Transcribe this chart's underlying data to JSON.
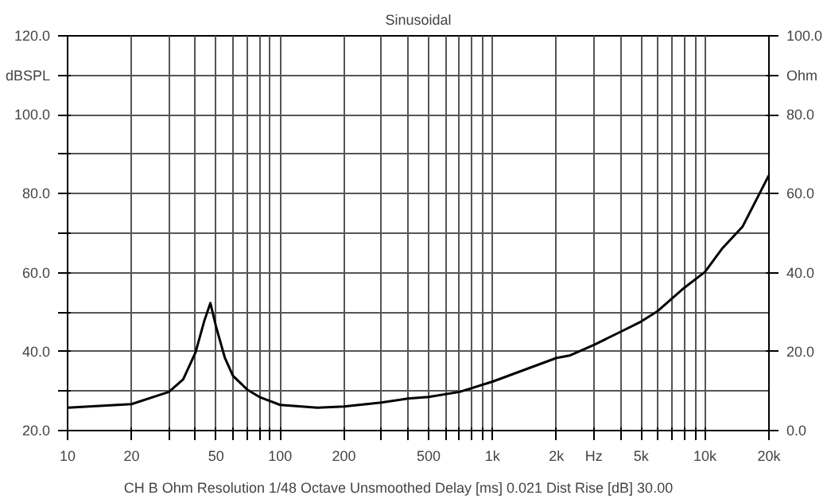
{
  "chart_data": {
    "type": "line",
    "title": "Sinusoidal",
    "x": [
      10,
      20,
      30,
      35,
      40,
      44,
      47,
      50,
      55,
      60,
      70,
      80,
      100,
      150,
      200,
      300,
      400,
      500,
      700,
      1000,
      2000,
      2300,
      3000,
      4000,
      5000,
      6000,
      8000,
      10000,
      12000,
      15000,
      20000
    ],
    "series": [
      {
        "color": "#000000",
        "axis": "y2",
        "values": [
          5.8,
          6.7,
          9.8,
          13,
          19.8,
          27.8,
          32.3,
          26.3,
          18.4,
          13.9,
          10.4,
          8.5,
          6.5,
          5.8,
          6.1,
          7.1,
          8.1,
          8.5,
          9.8,
          12.4,
          18.4,
          19,
          21.7,
          25,
          27.6,
          30.3,
          36.2,
          40.2,
          46,
          51.6,
          64.7
        ]
      }
    ],
    "xlim": [
      10,
      20000
    ],
    "log": "x",
    "xticks": [
      10,
      20,
      {
        "value": 30,
        "label": null
      },
      {
        "value": 40,
        "label": null
      },
      50,
      {
        "value": 60,
        "label": null
      },
      {
        "value": 70,
        "label": null
      },
      {
        "value": 80,
        "label": null
      },
      {
        "value": 90,
        "label": null
      },
      100,
      200,
      {
        "value": 300,
        "label": null
      },
      {
        "value": 400,
        "label": null
      },
      500,
      {
        "value": 600,
        "label": null
      },
      {
        "value": 700,
        "label": null
      },
      {
        "value": 800,
        "label": null
      },
      {
        "value": 900,
        "label": null
      },
      {
        "value": 1000,
        "label": "1k"
      },
      {
        "value": 2000,
        "label": "2k"
      },
      {
        "value": 3000,
        "label": "Hz"
      },
      {
        "value": 4000,
        "label": null
      },
      {
        "value": 5000,
        "label": "5k"
      },
      {
        "value": 6000,
        "label": null
      },
      {
        "value": 7000,
        "label": null
      },
      {
        "value": 8000,
        "label": null
      },
      {
        "value": 9000,
        "label": null
      },
      {
        "value": 10000,
        "label": "10k"
      },
      {
        "value": 20000,
        "label": "20k"
      }
    ],
    "ylim": [
      20,
      120
    ],
    "yticks": [
      {
        "value": 20,
        "label": "20.0"
      },
      {
        "value": 30,
        "label": null
      },
      {
        "value": 40,
        "label": "40.0"
      },
      {
        "value": 50,
        "label": null
      },
      {
        "value": 60,
        "label": "60.0"
      },
      {
        "value": 70,
        "label": null
      },
      {
        "value": 80,
        "label": "80.0"
      },
      {
        "value": 90,
        "label": null
      },
      {
        "value": 100,
        "label": "100.0"
      },
      {
        "value": 110,
        "label": "dBSPL"
      },
      {
        "value": 120,
        "label": "120.0"
      }
    ],
    "y2lim": [
      0,
      100
    ],
    "y2ticks": [
      {
        "value": 0,
        "label": "0.0"
      },
      {
        "value": 20,
        "label": "20.0"
      },
      {
        "value": 40,
        "label": "40.0"
      },
      {
        "value": 60,
        "label": "60.0"
      },
      {
        "value": 80,
        "label": "80.0"
      },
      {
        "value": 90,
        "label": "Ohm"
      },
      {
        "value": 100,
        "label": "100.0"
      }
    ],
    "grid": true,
    "annotations": [
      "CH B   Ohm   Resolution 1/48 Octave   Unsmoothed   Delay [ms] 0.021   Dist Rise [dB] 30.00"
    ]
  }
}
